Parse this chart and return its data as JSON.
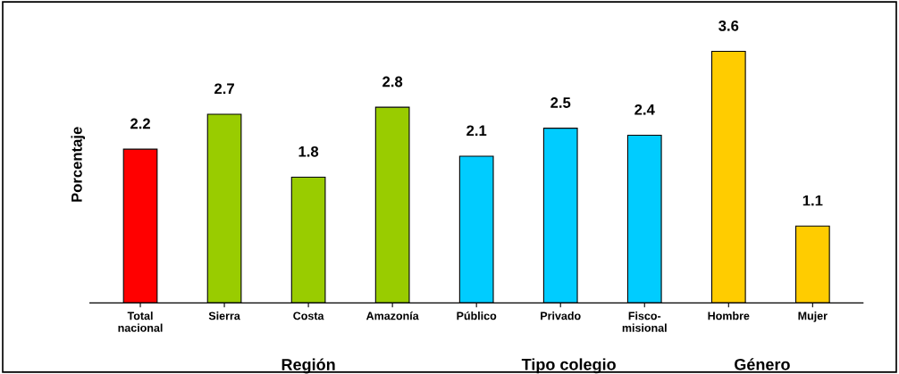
{
  "chart_data": {
    "type": "bar",
    "ylabel": "Porcentaje",
    "categories": [
      "Total\nnacional",
      "Sierra",
      "Costa",
      "Amazonía",
      "Público",
      "Privado",
      "Fisco-\nmisional",
      "Hombre",
      "Mujer"
    ],
    "values": [
      2.2,
      2.7,
      1.8,
      2.8,
      2.1,
      2.5,
      2.4,
      3.6,
      1.1
    ],
    "colors": [
      "#ff0000",
      "#99cc00",
      "#99cc00",
      "#99cc00",
      "#00ccff",
      "#00ccff",
      "#00ccff",
      "#ffcc00",
      "#ffcc00"
    ],
    "data_labels": true,
    "grid": false,
    "legend": false,
    "annotations": [
      "Región",
      "Tipo colegio",
      "Género"
    ]
  }
}
